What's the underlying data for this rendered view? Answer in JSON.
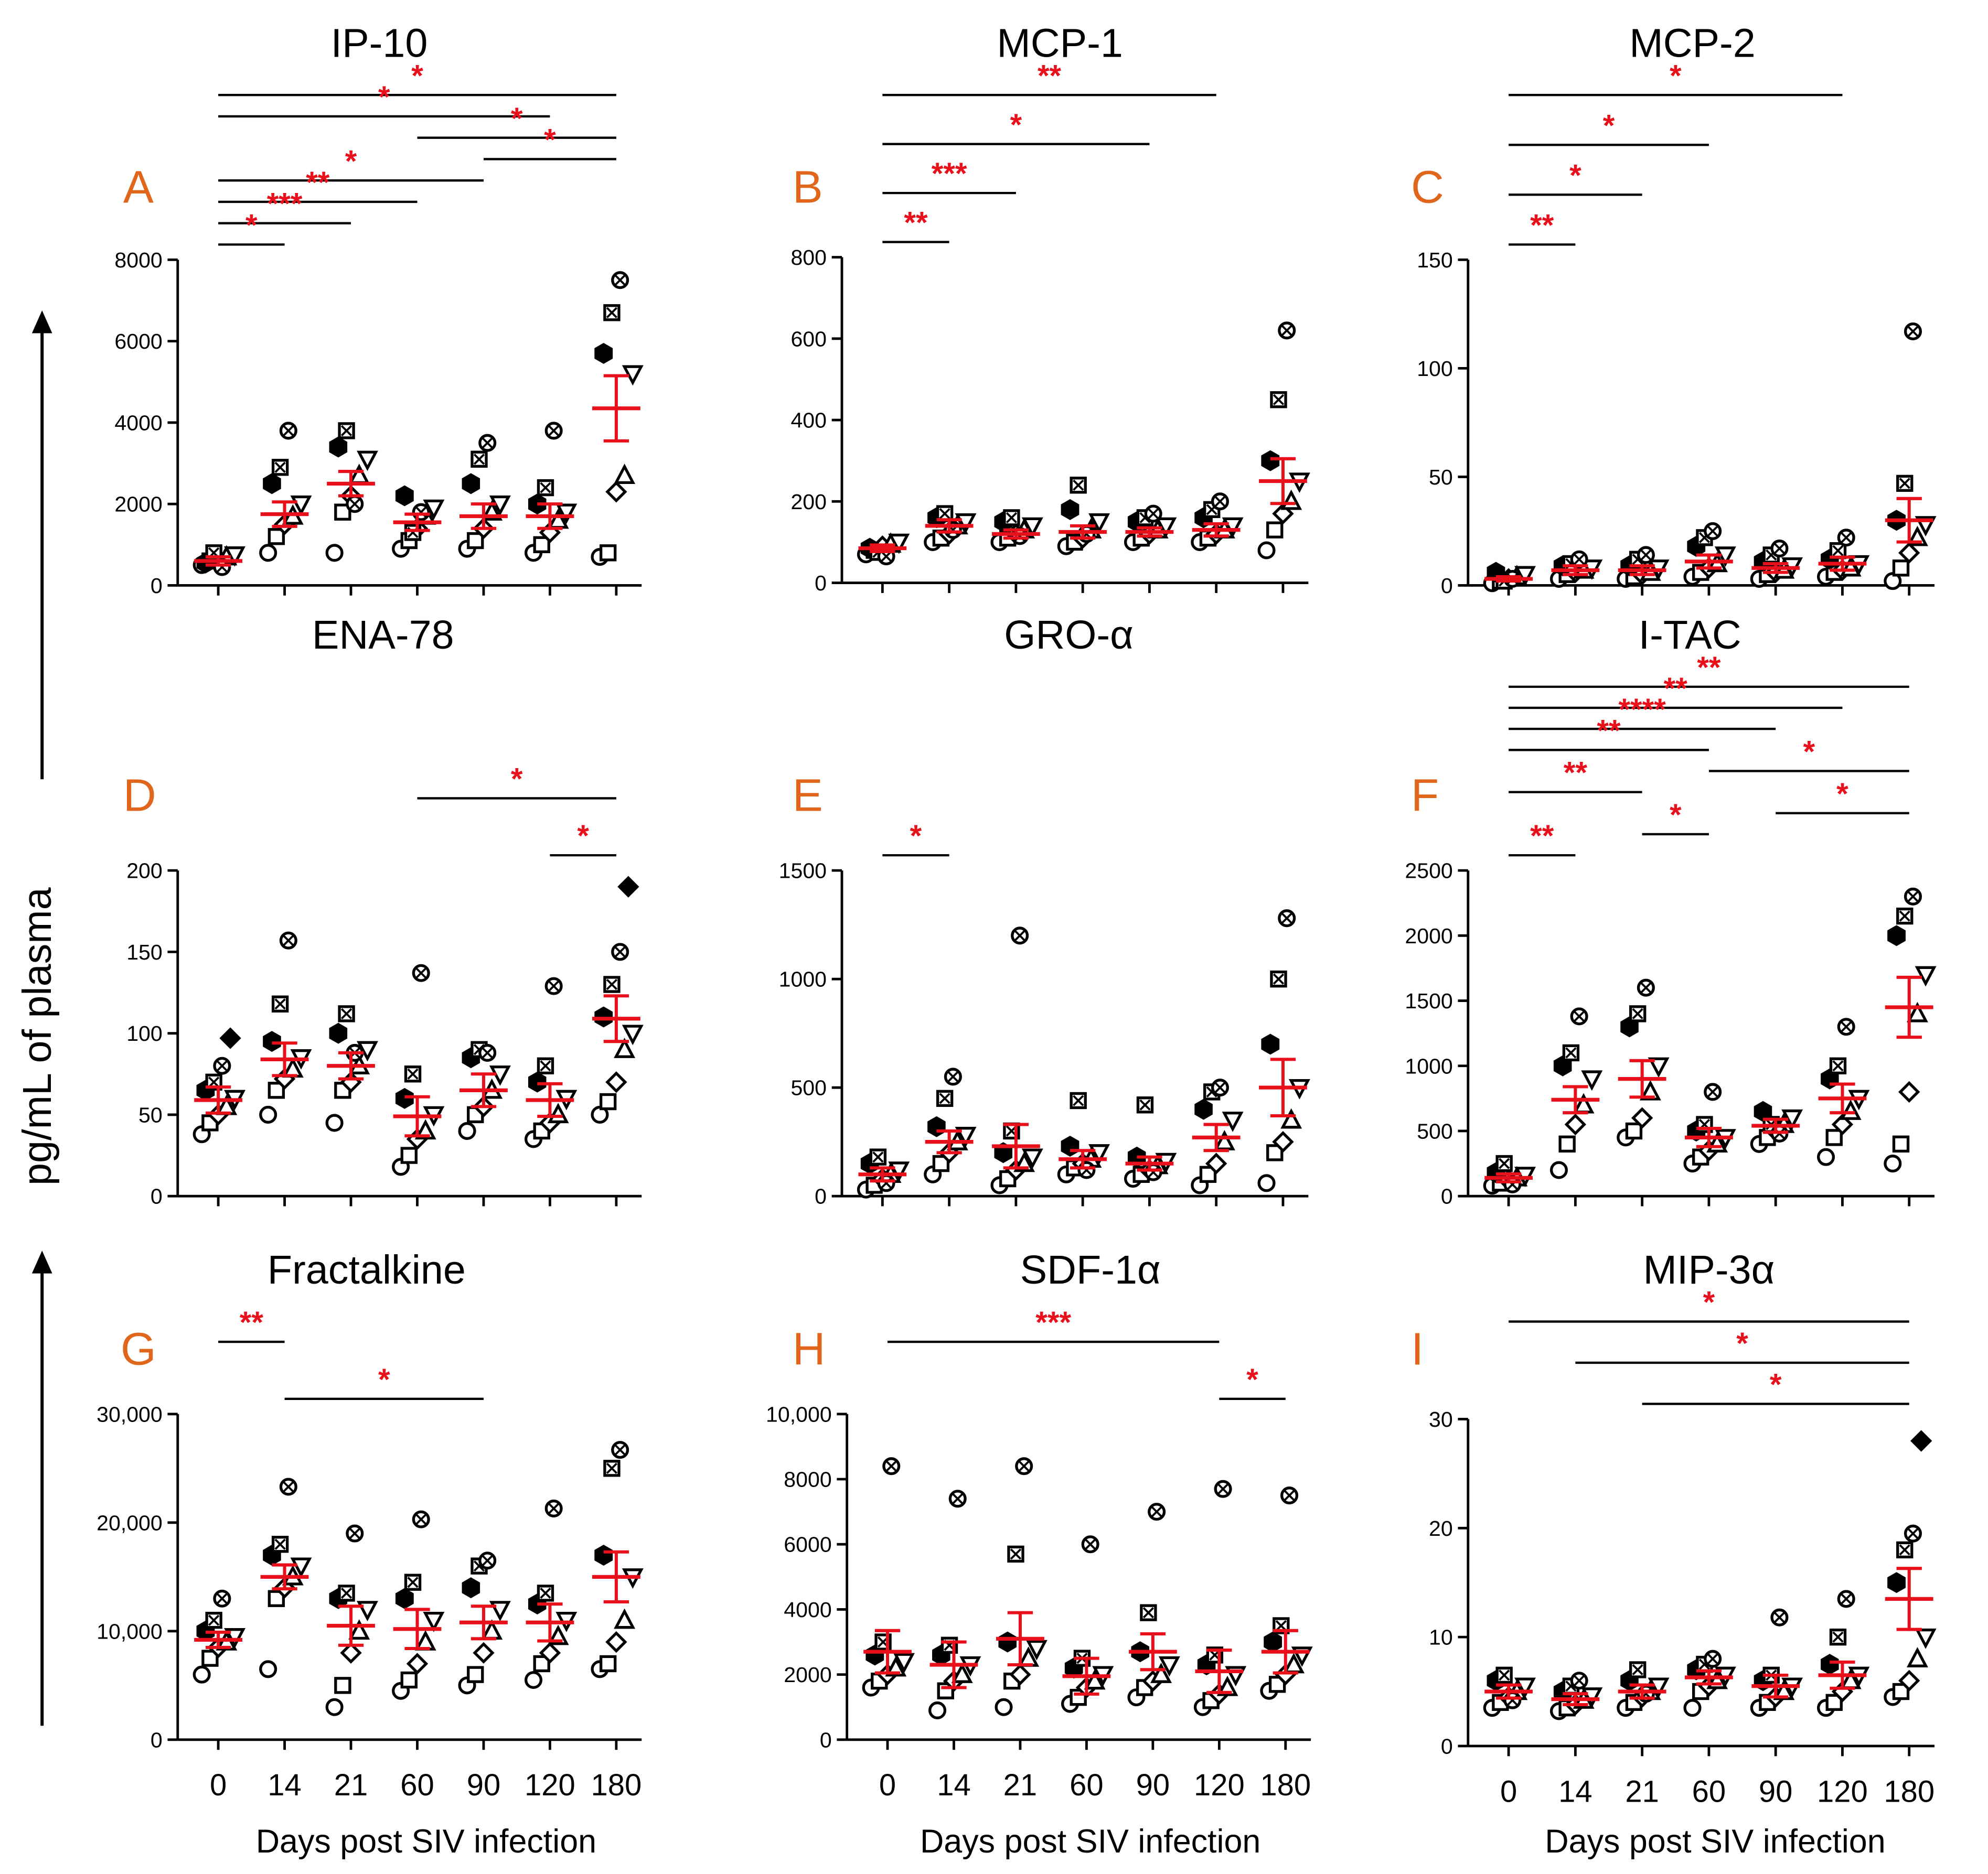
{
  "figure": {
    "ylabel": "pg/mL of plasma",
    "xlabel": "Days post SIV infection"
  },
  "chart_data": [
    {
      "panel": "A",
      "title": "IP-10",
      "type": "scatter",
      "categories": [
        "0",
        "14",
        "21",
        "60",
        "90",
        "120",
        "180"
      ],
      "ylim": [
        0,
        8000
      ],
      "yticks": [
        {
          "v": 0,
          "l": "0"
        },
        {
          "v": 2000,
          "l": "2000"
        },
        {
          "v": 4000,
          "l": "4000"
        },
        {
          "v": 6000,
          "l": "6000"
        },
        {
          "v": 8000,
          "l": "8000"
        }
      ],
      "means": [
        600,
        1750,
        2500,
        1550,
        1700,
        1700,
        4350
      ],
      "sems": [
        100,
        300,
        300,
        200,
        300,
        300,
        800
      ],
      "points": [
        [
          500,
          600,
          650,
          700,
          750,
          550,
          800,
          450
        ],
        [
          800,
          1200,
          1500,
          1700,
          2000,
          2500,
          2900,
          3800
        ],
        [
          800,
          1800,
          2200,
          2700,
          3100,
          3400,
          3800,
          2000
        ],
        [
          900,
          1100,
          1400,
          1700,
          1900,
          2200,
          1300,
          1800
        ],
        [
          900,
          1100,
          1400,
          1800,
          2000,
          2500,
          3100,
          3500
        ],
        [
          800,
          1000,
          1300,
          1600,
          1800,
          2000,
          2400,
          3800
        ],
        [
          700,
          800,
          2300,
          2700,
          5200,
          5700,
          6700,
          7500
        ]
      ],
      "brackets": [
        {
          "from": 0,
          "to": 6,
          "label": "*"
        },
        {
          "from": 0,
          "to": 5,
          "label": "*"
        },
        {
          "from": 3,
          "to": 6,
          "label": "*"
        },
        {
          "from": 4,
          "to": 6,
          "label": "*"
        },
        {
          "from": 0,
          "to": 4,
          "label": "*"
        },
        {
          "from": 0,
          "to": 3,
          "label": "**"
        },
        {
          "from": 0,
          "to": 2,
          "label": "***"
        },
        {
          "from": 0,
          "to": 1,
          "label": "*"
        }
      ]
    },
    {
      "panel": "B",
      "title": "MCP-1",
      "type": "scatter",
      "categories": [
        "0",
        "14",
        "21",
        "60",
        "90",
        "120",
        "180"
      ],
      "ylim": [
        0,
        800
      ],
      "yticks": [
        {
          "v": 0,
          "l": "0"
        },
        {
          "v": 200,
          "l": "200"
        },
        {
          "v": 400,
          "l": "400"
        },
        {
          "v": 600,
          "l": "600"
        },
        {
          "v": 800,
          "l": "800"
        }
      ],
      "means": [
        85,
        140,
        120,
        125,
        125,
        130,
        250
      ],
      "sems": [
        8,
        15,
        10,
        15,
        10,
        15,
        55
      ],
      "points": [
        [
          70,
          80,
          90,
          95,
          100,
          85,
          75,
          65
        ],
        [
          100,
          110,
          120,
          140,
          150,
          160,
          170,
          130
        ],
        [
          100,
          110,
          120,
          130,
          140,
          150,
          160,
          115
        ],
        [
          90,
          100,
          110,
          130,
          150,
          180,
          240,
          120
        ],
        [
          100,
          110,
          120,
          130,
          140,
          150,
          160,
          170
        ],
        [
          100,
          110,
          120,
          130,
          140,
          160,
          180,
          200
        ],
        [
          80,
          130,
          170,
          200,
          250,
          300,
          450,
          620
        ]
      ],
      "brackets": [
        {
          "from": 0,
          "to": 5,
          "label": "**"
        },
        {
          "from": 0,
          "to": 4,
          "label": "*"
        },
        {
          "from": 0,
          "to": 2,
          "label": "***"
        },
        {
          "from": 0,
          "to": 1,
          "label": "**"
        }
      ]
    },
    {
      "panel": "C",
      "title": "MCP-2",
      "type": "scatter",
      "categories": [
        "0",
        "14",
        "21",
        "60",
        "90",
        "120",
        "180"
      ],
      "ylim": [
        0,
        150
      ],
      "yticks": [
        {
          "v": 0,
          "l": "0"
        },
        {
          "v": 50,
          "l": "50"
        },
        {
          "v": 100,
          "l": "100"
        },
        {
          "v": 150,
          "l": "150"
        }
      ],
      "means": [
        3,
        7,
        7,
        11,
        8,
        10,
        30
      ],
      "sems": [
        1,
        2,
        2,
        3,
        2,
        3,
        10
      ],
      "points": [
        [
          1,
          2,
          3,
          4,
          5,
          6,
          2,
          3
        ],
        [
          3,
          5,
          6,
          7,
          8,
          9,
          10,
          12
        ],
        [
          3,
          4,
          5,
          6,
          8,
          9,
          12,
          14
        ],
        [
          4,
          6,
          8,
          10,
          14,
          18,
          22,
          25
        ],
        [
          3,
          5,
          6,
          7,
          9,
          11,
          14,
          17
        ],
        [
          4,
          6,
          7,
          8,
          10,
          12,
          16,
          22
        ],
        [
          2,
          8,
          15,
          22,
          28,
          30,
          47,
          117
        ]
      ],
      "brackets": [
        {
          "from": 0,
          "to": 5,
          "label": "*"
        },
        {
          "from": 0,
          "to": 3,
          "label": "*"
        },
        {
          "from": 0,
          "to": 2,
          "label": "*"
        },
        {
          "from": 0,
          "to": 1,
          "label": "**"
        }
      ]
    },
    {
      "panel": "D",
      "title": "ENA-78",
      "type": "scatter",
      "categories": [
        "0",
        "14",
        "21",
        "60",
        "90",
        "120",
        "180"
      ],
      "ylim": [
        0,
        200
      ],
      "yticks": [
        {
          "v": 0,
          "l": "0"
        },
        {
          "v": 50,
          "l": "50"
        },
        {
          "v": 100,
          "l": "100"
        },
        {
          "v": 150,
          "l": "150"
        },
        {
          "v": 200,
          "l": "200"
        }
      ],
      "means": [
        59,
        84,
        80,
        49,
        65,
        59,
        109
      ],
      "sems": [
        8,
        10,
        8,
        12,
        10,
        10,
        14
      ],
      "points": [
        [
          38,
          45,
          50,
          55,
          60,
          65,
          70,
          80,
          97
        ],
        [
          50,
          65,
          72,
          78,
          85,
          95,
          118,
          157
        ],
        [
          45,
          65,
          70,
          80,
          90,
          100,
          112,
          88
        ],
        [
          18,
          25,
          35,
          40,
          50,
          60,
          75,
          137
        ],
        [
          40,
          50,
          55,
          65,
          75,
          85,
          90,
          88
        ],
        [
          35,
          40,
          45,
          50,
          60,
          70,
          80,
          129
        ],
        [
          50,
          58,
          70,
          90,
          100,
          110,
          130,
          150,
          190
        ]
      ],
      "brackets": [
        {
          "from": 3,
          "to": 6,
          "label": "*"
        },
        {
          "from": 5,
          "to": 6,
          "label": "*"
        }
      ]
    },
    {
      "panel": "E",
      "title": "GRO-α",
      "type": "scatter",
      "categories": [
        "0",
        "14",
        "21",
        "60",
        "90",
        "120",
        "180"
      ],
      "ylim": [
        0,
        1500
      ],
      "yticks": [
        {
          "v": 0,
          "l": "0"
        },
        {
          "v": 500,
          "l": "500"
        },
        {
          "v": 1000,
          "l": "1000"
        },
        {
          "v": 1500,
          "l": "1500"
        }
      ],
      "means": [
        100,
        250,
        230,
        170,
        150,
        270,
        500
      ],
      "sems": [
        30,
        50,
        100,
        40,
        30,
        60,
        130
      ],
      "points": [
        [
          30,
          50,
          80,
          100,
          120,
          150,
          180,
          60
        ],
        [
          100,
          150,
          200,
          250,
          280,
          320,
          450,
          550
        ],
        [
          50,
          80,
          120,
          150,
          180,
          200,
          300,
          1200
        ],
        [
          100,
          130,
          150,
          170,
          200,
          230,
          440,
          120
        ],
        [
          80,
          100,
          120,
          140,
          160,
          180,
          420,
          110
        ],
        [
          50,
          100,
          150,
          250,
          350,
          400,
          480,
          500
        ],
        [
          60,
          200,
          250,
          350,
          500,
          700,
          1000,
          1280
        ]
      ],
      "brackets": [
        {
          "from": 0,
          "to": 1,
          "label": "*"
        }
      ]
    },
    {
      "panel": "F",
      "title": "I-TAC",
      "type": "scatter",
      "categories": [
        "0",
        "14",
        "21",
        "60",
        "90",
        "120",
        "180"
      ],
      "ylim": [
        0,
        2500
      ],
      "yticks": [
        {
          "v": 0,
          "l": "0"
        },
        {
          "v": 500,
          "l": "500"
        },
        {
          "v": 1000,
          "l": "1000"
        },
        {
          "v": 1500,
          "l": "1500"
        },
        {
          "v": 2000,
          "l": "2000"
        },
        {
          "v": 2500,
          "l": "2500"
        }
      ],
      "means": [
        140,
        740,
        900,
        450,
        540,
        750,
        1450
      ],
      "sems": [
        30,
        100,
        140,
        70,
        50,
        110,
        230
      ],
      "points": [
        [
          80,
          100,
          120,
          140,
          160,
          180,
          250,
          90
        ],
        [
          200,
          400,
          550,
          700,
          900,
          1000,
          1100,
          1380
        ],
        [
          450,
          500,
          600,
          800,
          1000,
          1300,
          1400,
          1600
        ],
        [
          250,
          300,
          350,
          400,
          450,
          500,
          550,
          800
        ],
        [
          400,
          450,
          500,
          550,
          600,
          650,
          550,
          480
        ],
        [
          300,
          450,
          550,
          650,
          750,
          900,
          1000,
          1300
        ],
        [
          250,
          400,
          800,
          1400,
          1700,
          2000,
          2150,
          2300
        ]
      ],
      "brackets": [
        {
          "from": 0,
          "to": 6,
          "label": "**"
        },
        {
          "from": 0,
          "to": 5,
          "label": "**"
        },
        {
          "from": 0,
          "to": 4,
          "label": "****"
        },
        {
          "from": 0,
          "to": 3,
          "label": "**"
        },
        {
          "from": 3,
          "to": 6,
          "label": "*"
        },
        {
          "from": 0,
          "to": 2,
          "label": "**"
        },
        {
          "from": 4,
          "to": 6,
          "label": "*"
        },
        {
          "from": 2,
          "to": 3,
          "label": "*"
        },
        {
          "from": 0,
          "to": 1,
          "label": "**"
        }
      ]
    },
    {
      "panel": "G",
      "title": "Fractalkine",
      "type": "scatter",
      "categories": [
        "0",
        "14",
        "21",
        "60",
        "90",
        "120",
        "180"
      ],
      "ylim": [
        0,
        30000
      ],
      "yticks": [
        {
          "v": 0,
          "l": "0"
        },
        {
          "v": 10000,
          "l": "10,000"
        },
        {
          "v": 20000,
          "l": "20,000"
        },
        {
          "v": 30000,
          "l": "30,000"
        }
      ],
      "means": [
        9200,
        15000,
        10500,
        10200,
        10800,
        10800,
        15000
      ],
      "sems": [
        700,
        1100,
        1800,
        1800,
        1500,
        1700,
        2300
      ],
      "points": [
        [
          6000,
          7500,
          8500,
          9000,
          9500,
          10000,
          11000,
          13000
        ],
        [
          6500,
          13000,
          14000,
          15000,
          16000,
          17000,
          18000,
          23300
        ],
        [
          3000,
          5000,
          8000,
          10000,
          12000,
          13000,
          13500,
          19000
        ],
        [
          4500,
          5500,
          7000,
          9000,
          11000,
          13000,
          14500,
          20300
        ],
        [
          5000,
          6000,
          8000,
          10000,
          12000,
          14000,
          16000,
          16500
        ],
        [
          5500,
          7000,
          8000,
          9500,
          11000,
          12500,
          13500,
          21300
        ],
        [
          6500,
          7000,
          9000,
          11000,
          15000,
          17000,
          25000,
          26700
        ]
      ],
      "brackets": [
        {
          "from": 0,
          "to": 1,
          "label": "**"
        },
        {
          "from": 1,
          "to": 4,
          "label": "*"
        }
      ]
    },
    {
      "panel": "H",
      "title": "SDF-1α",
      "type": "scatter",
      "categories": [
        "0",
        "14",
        "21",
        "60",
        "90",
        "120",
        "180"
      ],
      "ylim": [
        0,
        10000
      ],
      "yticks": [
        {
          "v": 0,
          "l": "0"
        },
        {
          "v": 2000,
          "l": "2000"
        },
        {
          "v": 4000,
          "l": "4000"
        },
        {
          "v": 6000,
          "l": "6000"
        },
        {
          "v": 8000,
          "l": "8000"
        },
        {
          "v": 10000,
          "l": "10,000"
        }
      ],
      "means": [
        2700,
        2300,
        3100,
        1950,
        2700,
        2100,
        2700
      ],
      "sems": [
        650,
        700,
        800,
        550,
        550,
        650,
        650
      ],
      "points": [
        [
          1600,
          1800,
          2000,
          2200,
          2400,
          2600,
          3000,
          8400
        ],
        [
          900,
          1500,
          1800,
          2000,
          2300,
          2600,
          2900,
          7400
        ],
        [
          1000,
          1800,
          2000,
          2500,
          2800,
          3000,
          5700,
          8400
        ],
        [
          1100,
          1300,
          1600,
          1800,
          2000,
          2200,
          2500,
          6000
        ],
        [
          1300,
          1600,
          1800,
          2000,
          2300,
          2700,
          3900,
          7000
        ],
        [
          1000,
          1200,
          1400,
          1600,
          2000,
          2300,
          2600,
          7700
        ],
        [
          1500,
          1700,
          2000,
          2300,
          2600,
          3000,
          3500,
          7500
        ]
      ],
      "brackets": [
        {
          "from": 0,
          "to": 5,
          "label": "***"
        },
        {
          "from": 5,
          "to": 6,
          "label": "*"
        }
      ]
    },
    {
      "panel": "I",
      "title": "MIP-3α",
      "type": "scatter",
      "categories": [
        "0",
        "14",
        "21",
        "60",
        "90",
        "120",
        "180"
      ],
      "ylim": [
        0,
        30
      ],
      "yticks": [
        {
          "v": 0,
          "l": "0"
        },
        {
          "v": 10,
          "l": "10"
        },
        {
          "v": 20,
          "l": "20"
        },
        {
          "v": 30,
          "l": "30"
        }
      ],
      "means": [
        5,
        4.3,
        5,
        6.3,
        5.5,
        6.5,
        13.5
      ],
      "sems": [
        0.6,
        0.5,
        0.6,
        0.6,
        1.0,
        1.2,
        2.8
      ],
      "points": [
        [
          3.5,
          4,
          4.5,
          5,
          5.5,
          6,
          6.5,
          4.2
        ],
        [
          3.2,
          3.5,
          3.8,
          4.2,
          4.6,
          5,
          5.5,
          6
        ],
        [
          3.5,
          4,
          4.5,
          5,
          5.5,
          6,
          7,
          4.8
        ],
        [
          3.5,
          5,
          5.5,
          6,
          6.5,
          7,
          7.5,
          8
        ],
        [
          3.5,
          4,
          4.5,
          5,
          5.5,
          6,
          6.5,
          11.8
        ],
        [
          3.5,
          4,
          5,
          6,
          6.5,
          7.5,
          10,
          13.5
        ],
        [
          4.5,
          5,
          6,
          8,
          10,
          15,
          18,
          19.5,
          28
        ]
      ],
      "brackets": [
        {
          "from": 0,
          "to": 6,
          "label": "*"
        },
        {
          "from": 1,
          "to": 6,
          "label": "*"
        },
        {
          "from": 2,
          "to": 6,
          "label": "*"
        }
      ]
    }
  ]
}
